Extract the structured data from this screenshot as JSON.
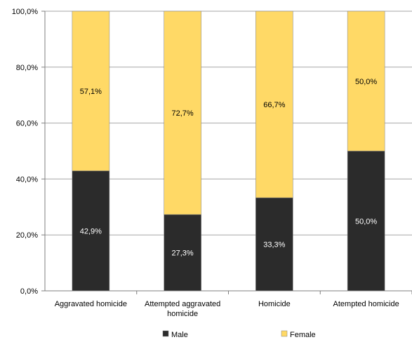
{
  "chart_data": {
    "type": "bar",
    "stacked": true,
    "categories": [
      [
        "Aggravated homicide"
      ],
      [
        "Attempted aggravated",
        "homicide"
      ],
      [
        "Homicide"
      ],
      [
        "Atempted homicide"
      ]
    ],
    "series": [
      {
        "name": "Male",
        "color": "#2b2b2b",
        "label_color": "#ffffff",
        "values": [
          42.9,
          27.3,
          33.3,
          50.0
        ],
        "labels": [
          "42,9%",
          "27,3%",
          "33,3%",
          "50,0%"
        ]
      },
      {
        "name": "Female",
        "color": "#ffd966",
        "label_color": "#000000",
        "values": [
          57.1,
          72.7,
          66.7,
          50.0
        ],
        "labels": [
          "57,1%",
          "72,7%",
          "66,7%",
          "50,0%"
        ]
      }
    ],
    "ylim": [
      0,
      100
    ],
    "yticks": [
      0,
      20,
      40,
      60,
      80,
      100
    ],
    "ytick_labels": [
      "0,0%",
      "20,0%",
      "40,0%",
      "60,0%",
      "80,0%",
      "100,0%"
    ],
    "grid": true,
    "legend_position": "bottom",
    "xlabel": "",
    "ylabel": "",
    "title": ""
  }
}
